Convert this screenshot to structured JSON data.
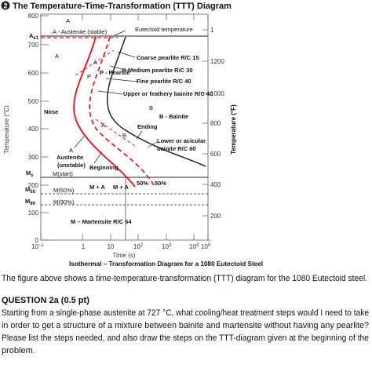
{
  "header": {
    "number": "2",
    "title": "The Temperature-Time-Transformation (TTT) Diagram"
  },
  "diagram": {
    "y_axis_label": "Temperature (°C)",
    "y2_axis_label": "Temperature (°F)",
    "x_axis_label": "Time (s)",
    "caption": "Isothermal – Transformation Diagram for a 1080 Eutectoid Steel",
    "yticks": [
      "800",
      "700",
      "600",
      "500",
      "400",
      "300",
      "200",
      "100",
      "0"
    ],
    "y2ticks": [
      "1",
      "1200",
      "1000",
      "800",
      "600",
      "400",
      "200"
    ],
    "xticks": [
      {
        "base": "10",
        "exp": "−1"
      },
      "1",
      "10",
      {
        "base": "10",
        "exp": "2"
      },
      {
        "base": "10",
        "exp": "3"
      },
      {
        "base": "10",
        "exp": "4"
      },
      {
        "base": "10",
        "exp": "5"
      }
    ],
    "labels": [
      "A",
      "A - Austenite (stable)",
      "Eutectoid temperature",
      "A",
      "Coarse pearlite R/C 15",
      "P - Pearlite",
      "P",
      "Medium pearlite R/C 30",
      "Fine pearlite R/C 40",
      "Upper or feathery bainite R/C 40",
      "B",
      "B - Bainite",
      "Nose",
      "Ending",
      "Lower or acicular",
      "bainite R/C 60",
      "A",
      "Austenite",
      "(unstable)",
      "Beginning",
      "M(start)",
      "M(50%)",
      "M + A",
      "M + A",
      "50%",
      "50%",
      "M(90%)",
      "M – Martensite R/C 64",
      "A",
      "P",
      "A",
      "B"
    ],
    "subscript_labels": [
      {
        "main": "A",
        "sub": "e1"
      },
      {
        "main": "M",
        "sub": "s"
      },
      {
        "main": "M",
        "sub": "50"
      },
      {
        "main": "M",
        "sub": "90"
      }
    ]
  },
  "body": {
    "intro": "The figure above shows a time-temperature-transformation (TTT) diagram for the 1080 Eutectoid steel.",
    "question_title": "QUESTION 2a (0.5 pt)",
    "question_lines": [
      "Starting from a single-phase austenite at 727 °C, what cooling/heat treatment steps would I need to take",
      "in order to get a structure of a mixture between bainite and martensite without having any pearlite?",
      "Please list the steps needed, and also draw the steps on the TTT-diagram given at the beginning of the",
      "problem."
    ]
  }
}
